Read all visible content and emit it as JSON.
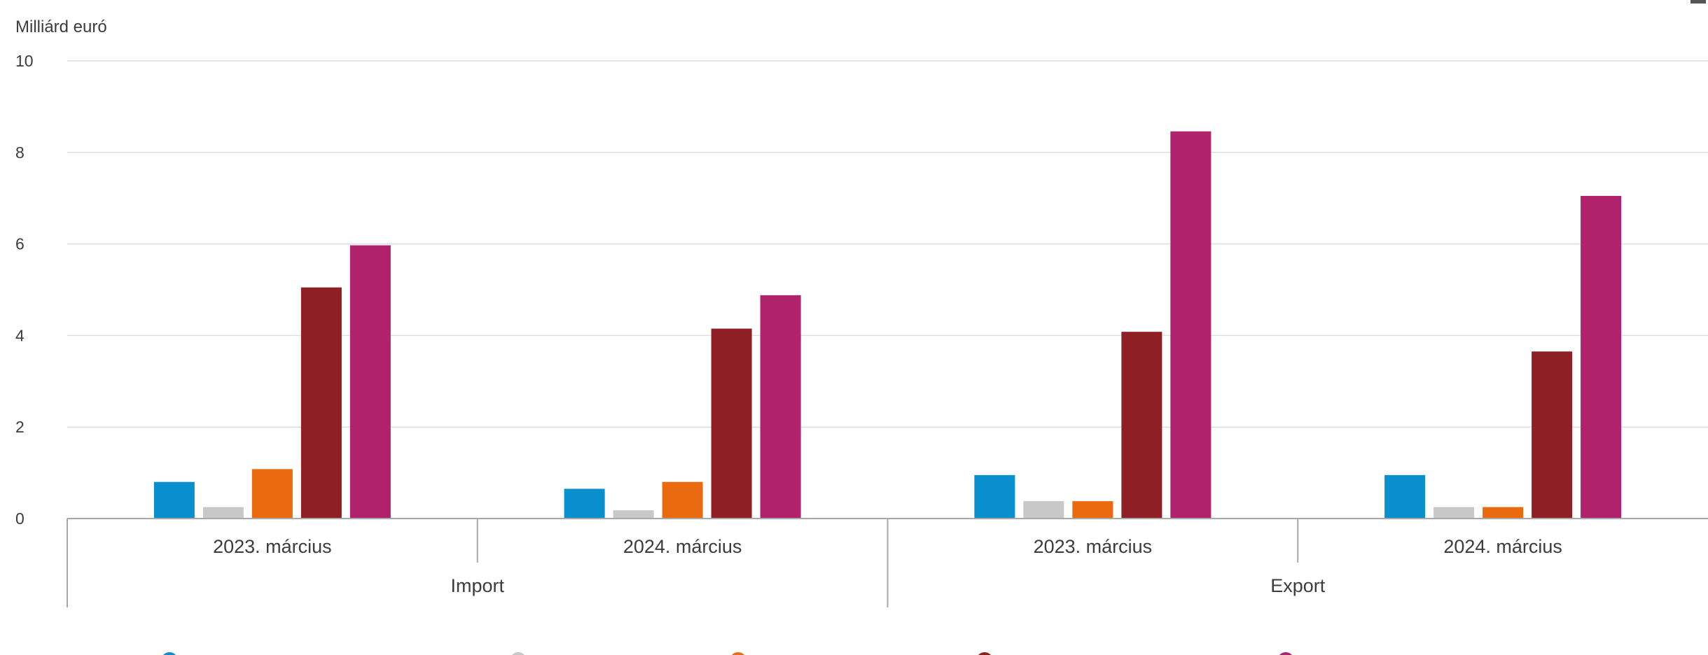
{
  "chart_data": {
    "type": "bar",
    "ylabel": "Milliárd euró",
    "ylim": [
      0,
      10
    ],
    "yticks": [
      "0",
      "2",
      "4",
      "6",
      "8",
      "10"
    ],
    "grid": true,
    "groups": [
      {
        "label": "Import",
        "categories": [
          "2023. március",
          "2024. március"
        ]
      },
      {
        "label": "Export",
        "categories": [
          "2023. március",
          "2024. március"
        ]
      }
    ],
    "categories": [
      "2023. március",
      "2024. március",
      "2023. március",
      "2024. március"
    ],
    "series": [
      {
        "color": "#0a8fce",
        "values": [
          0.8,
          0.65,
          0.95,
          0.95
        ]
      },
      {
        "color": "#c8c8c8",
        "values": [
          0.25,
          0.18,
          0.38,
          0.25
        ]
      },
      {
        "color": "#ea6a0f",
        "values": [
          1.08,
          0.8,
          0.38,
          0.25
        ]
      },
      {
        "color": "#8e2025",
        "values": [
          5.05,
          4.15,
          4.08,
          3.65
        ]
      },
      {
        "color": "#b0226c",
        "values": [
          5.97,
          4.88,
          8.46,
          7.05
        ]
      }
    ]
  }
}
